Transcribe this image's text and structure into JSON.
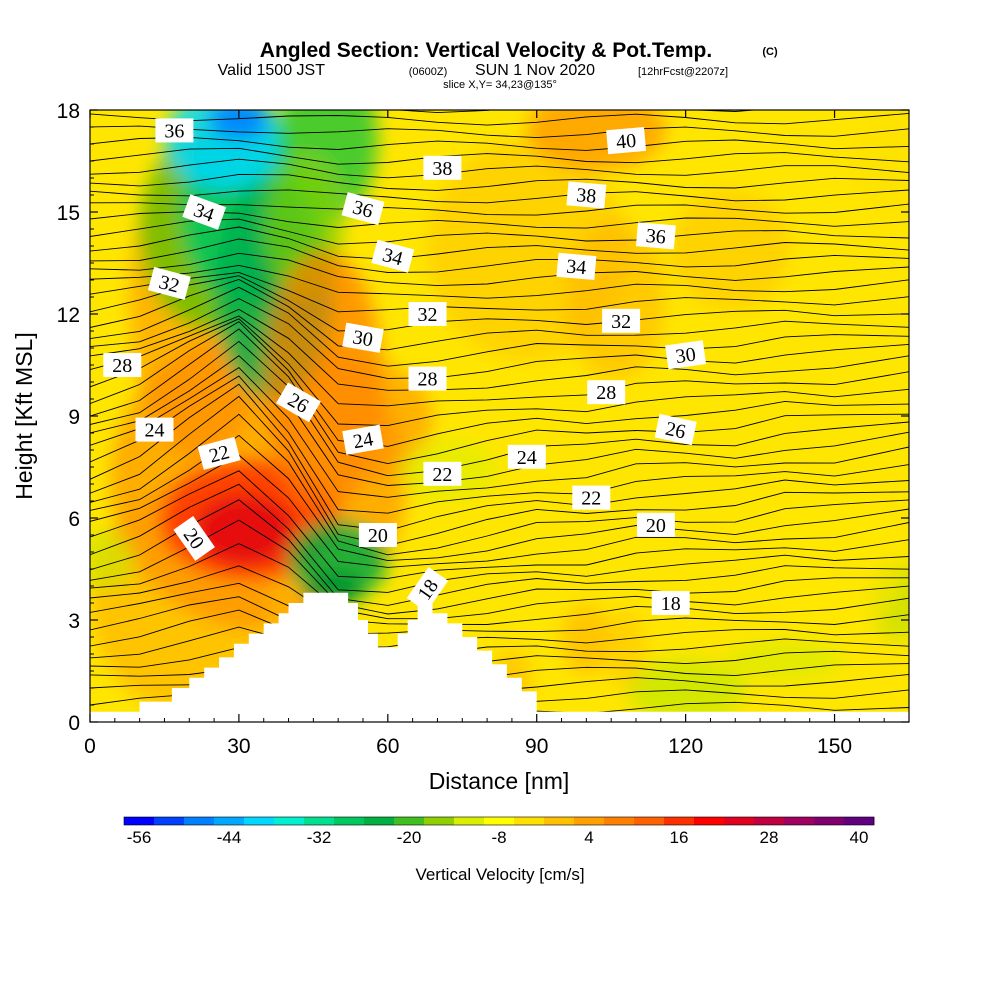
{
  "header": {
    "title": "Angled Section: Vertical Velocity & Pot.Temp.",
    "copyright": "(C)",
    "valid_prefix": "Valid 1500 JST",
    "valid_zulu": "(0600Z)",
    "valid_date": "SUN 1 Nov 2020",
    "forecast": "[12hrFcst@2207z]",
    "slice": "slice X,Y= 34,23@135°"
  },
  "chart_data": {
    "type": "heatmap",
    "xlabel": "Distance [nm]",
    "ylabel": "Height [Kft MSL]",
    "xlim": [
      0,
      165
    ],
    "ylim": [
      0,
      18
    ],
    "x_ticks": [
      0,
      30,
      60,
      90,
      120,
      150
    ],
    "y_ticks": [
      0,
      3,
      6,
      9,
      12,
      15,
      18
    ],
    "colorbar": {
      "label": "Vertical Velocity [cm/s]",
      "tick_labels": [
        "-56",
        "-44",
        "-32",
        "-20",
        "-8",
        "4",
        "16",
        "28",
        "40"
      ],
      "colors": [
        "#0000ff",
        "#0040ff",
        "#0080ff",
        "#00a8ff",
        "#00d8ff",
        "#00f0d0",
        "#00e090",
        "#00c860",
        "#00b040",
        "#40c020",
        "#90d000",
        "#d8f000",
        "#ffff00",
        "#ffe000",
        "#ffc000",
        "#ffa000",
        "#ff8000",
        "#ff6000",
        "#ff3000",
        "#ff0000",
        "#e00020",
        "#c00040",
        "#a00060",
        "#800070",
        "#600080"
      ]
    },
    "terrain_profile_kft": [
      [
        0,
        0.3
      ],
      [
        10,
        0.3
      ],
      [
        10,
        0.6
      ],
      [
        16.5,
        0.6
      ],
      [
        16.5,
        1.0
      ],
      [
        20,
        1.0
      ],
      [
        20,
        1.3
      ],
      [
        23,
        1.3
      ],
      [
        23,
        1.6
      ],
      [
        26,
        1.6
      ],
      [
        26,
        1.9
      ],
      [
        29,
        1.9
      ],
      [
        29,
        2.3
      ],
      [
        32,
        2.3
      ],
      [
        32,
        2.6
      ],
      [
        35,
        2.6
      ],
      [
        35,
        2.9
      ],
      [
        38,
        2.9
      ],
      [
        38,
        3.2
      ],
      [
        40,
        3.2
      ],
      [
        40,
        3.5
      ],
      [
        43,
        3.5
      ],
      [
        43,
        3.8
      ],
      [
        52,
        3.8
      ],
      [
        52,
        3.5
      ],
      [
        54,
        3.5
      ],
      [
        54,
        3.0
      ],
      [
        56,
        3.0
      ],
      [
        56,
        2.6
      ],
      [
        58,
        2.6
      ],
      [
        58,
        2.2
      ],
      [
        62,
        2.2
      ],
      [
        62,
        2.6
      ],
      [
        64,
        2.6
      ],
      [
        64,
        3.0
      ],
      [
        66,
        3.0
      ],
      [
        66,
        3.8
      ],
      [
        69,
        3.8
      ],
      [
        69,
        3.2
      ],
      [
        72,
        3.2
      ],
      [
        72,
        2.9
      ],
      [
        75,
        2.9
      ],
      [
        75,
        2.5
      ],
      [
        78,
        2.5
      ],
      [
        78,
        2.1
      ],
      [
        81,
        2.1
      ],
      [
        81,
        1.7
      ],
      [
        84,
        1.7
      ],
      [
        84,
        1.3
      ],
      [
        87,
        1.3
      ],
      [
        87,
        0.9
      ],
      [
        90,
        0.9
      ],
      [
        90,
        0.3
      ],
      [
        165,
        0.3
      ]
    ],
    "contour_labels": [
      {
        "text": "36",
        "x": 17,
        "y": 17.4,
        "rot": 0
      },
      {
        "text": "40",
        "x": 108,
        "y": 17.1,
        "rot": -5
      },
      {
        "text": "38",
        "x": 71,
        "y": 16.3,
        "rot": 0
      },
      {
        "text": "38",
        "x": 100,
        "y": 15.5,
        "rot": 5
      },
      {
        "text": "34",
        "x": 23,
        "y": 15.0,
        "rot": 20
      },
      {
        "text": "36",
        "x": 55,
        "y": 15.1,
        "rot": 15
      },
      {
        "text": "36",
        "x": 114,
        "y": 14.3,
        "rot": 5
      },
      {
        "text": "34",
        "x": 61,
        "y": 13.7,
        "rot": 15
      },
      {
        "text": "34",
        "x": 98,
        "y": 13.4,
        "rot": 5
      },
      {
        "text": "32",
        "x": 16,
        "y": 12.9,
        "rot": 15
      },
      {
        "text": "32",
        "x": 68,
        "y": 12.0,
        "rot": 0
      },
      {
        "text": "32",
        "x": 107,
        "y": 11.8,
        "rot": 0
      },
      {
        "text": "30",
        "x": 55,
        "y": 11.3,
        "rot": 10
      },
      {
        "text": "30",
        "x": 120,
        "y": 10.8,
        "rot": -8
      },
      {
        "text": "28",
        "x": 6.5,
        "y": 10.5,
        "rot": 0
      },
      {
        "text": "28",
        "x": 68,
        "y": 10.1,
        "rot": 0
      },
      {
        "text": "28",
        "x": 104,
        "y": 9.7,
        "rot": 0
      },
      {
        "text": "26",
        "x": 42,
        "y": 9.4,
        "rot": 30
      },
      {
        "text": "26",
        "x": 118,
        "y": 8.6,
        "rot": 12
      },
      {
        "text": "24",
        "x": 13,
        "y": 8.6,
        "rot": 0
      },
      {
        "text": "24",
        "x": 55,
        "y": 8.3,
        "rot": -10
      },
      {
        "text": "24",
        "x": 88,
        "y": 7.8,
        "rot": 0
      },
      {
        "text": "22",
        "x": 26,
        "y": 7.9,
        "rot": -15
      },
      {
        "text": "22",
        "x": 71,
        "y": 7.3,
        "rot": 0
      },
      {
        "text": "22",
        "x": 101,
        "y": 6.6,
        "rot": 0
      },
      {
        "text": "20",
        "x": 21,
        "y": 5.4,
        "rot": 55
      },
      {
        "text": "20",
        "x": 58,
        "y": 5.5,
        "rot": 0
      },
      {
        "text": "20",
        "x": 114,
        "y": 5.8,
        "rot": 0
      },
      {
        "text": "18",
        "x": 68,
        "y": 3.9,
        "rot": -55
      },
      {
        "text": "18",
        "x": 117,
        "y": 3.5,
        "rot": 0
      }
    ]
  }
}
